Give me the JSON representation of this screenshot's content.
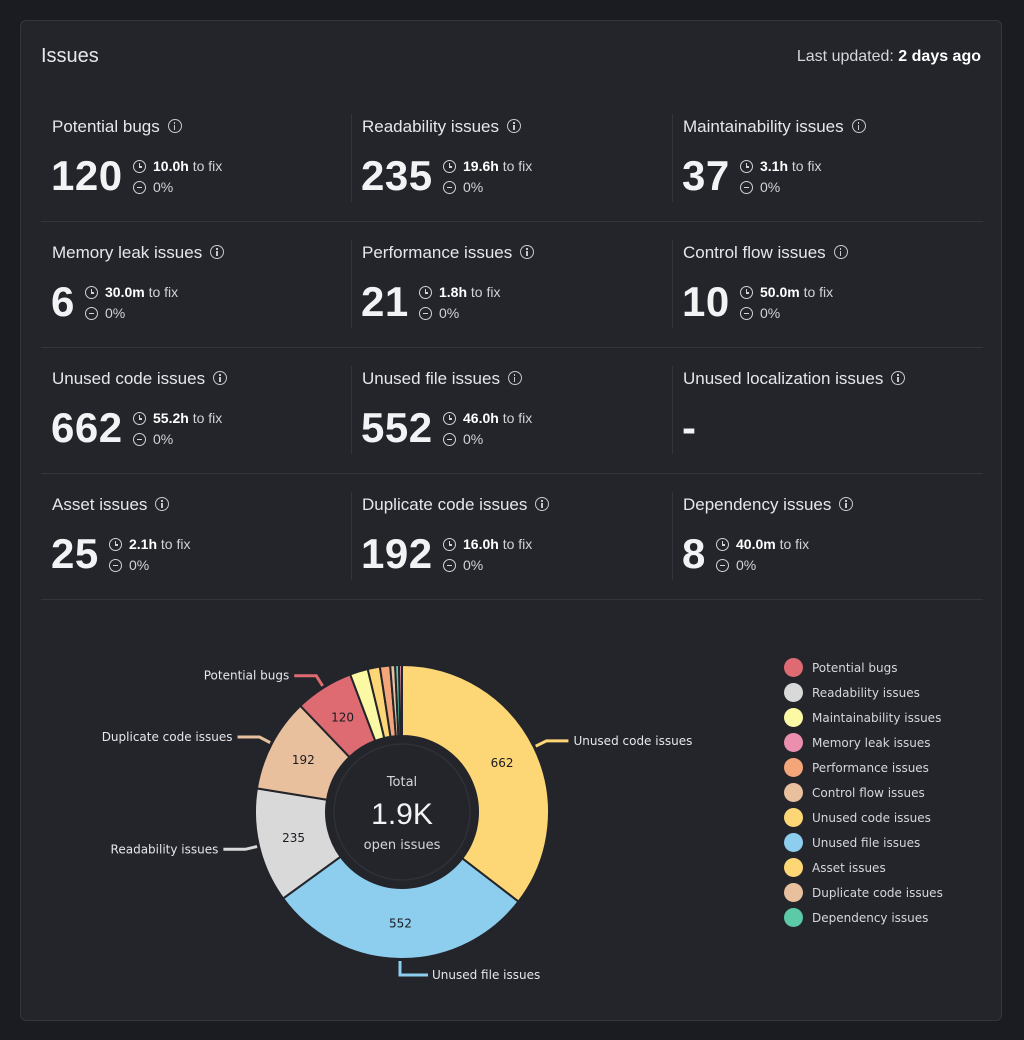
{
  "header": {
    "title": "Issues",
    "updated_prefix": "Last updated: ",
    "updated_value": "2 days ago"
  },
  "metrics": [
    {
      "label": "Potential bugs",
      "value": "120",
      "fix_time": "10.0h",
      "fix_suffix": " to fix",
      "change": "0%"
    },
    {
      "label": "Readability issues",
      "value": "235",
      "fix_time": "19.6h",
      "fix_suffix": " to fix",
      "change": "0%"
    },
    {
      "label": "Maintainability issues",
      "value": "37",
      "fix_time": "3.1h",
      "fix_suffix": " to fix",
      "change": "0%"
    },
    {
      "label": "Memory leak issues",
      "value": "6",
      "fix_time": "30.0m",
      "fix_suffix": " to fix",
      "change": "0%"
    },
    {
      "label": "Performance issues",
      "value": "21",
      "fix_time": "1.8h",
      "fix_suffix": " to fix",
      "change": "0%"
    },
    {
      "label": "Control flow issues",
      "value": "10",
      "fix_time": "50.0m",
      "fix_suffix": " to fix",
      "change": "0%"
    },
    {
      "label": "Unused code issues",
      "value": "662",
      "fix_time": "55.2h",
      "fix_suffix": " to fix",
      "change": "0%"
    },
    {
      "label": "Unused file issues",
      "value": "552",
      "fix_time": "46.0h",
      "fix_suffix": " to fix",
      "change": "0%"
    },
    {
      "label": "Unused localization issues",
      "value": "-",
      "fix_time": null,
      "fix_suffix": null,
      "change": null
    },
    {
      "label": "Asset issues",
      "value": "25",
      "fix_time": "2.1h",
      "fix_suffix": " to fix",
      "change": "0%"
    },
    {
      "label": "Duplicate code issues",
      "value": "192",
      "fix_time": "16.0h",
      "fix_suffix": " to fix",
      "change": "0%"
    },
    {
      "label": "Dependency issues",
      "value": "8",
      "fix_time": "40.0m",
      "fix_suffix": " to fix",
      "change": "0%"
    }
  ],
  "chart_data": {
    "type": "pie",
    "center_caption_top": "Total",
    "center_value": "1.9K",
    "center_caption_bottom": "open issues",
    "slices": [
      {
        "name": "Unused code issues",
        "value": 662,
        "color": "#fdd675",
        "label": "662",
        "callout": true
      },
      {
        "name": "Unused file issues",
        "value": 552,
        "color": "#8dcdee",
        "label": "552",
        "callout": true
      },
      {
        "name": "Readability issues",
        "value": 235,
        "color": "#d9d9d9",
        "label": "235",
        "callout": true
      },
      {
        "name": "Duplicate code issues",
        "value": 192,
        "color": "#e8c09e",
        "label": "192",
        "callout": true
      },
      {
        "name": "Potential bugs",
        "value": 120,
        "color": "#dd6b71",
        "label": "120",
        "callout": true
      },
      {
        "name": "Maintainability issues",
        "value": 37,
        "color": "#fcf9a4",
        "label": "",
        "callout": false
      },
      {
        "name": "Asset issues",
        "value": 25,
        "color": "#fdd675",
        "label": "",
        "callout": false
      },
      {
        "name": "Performance issues",
        "value": 21,
        "color": "#f5a57a",
        "label": "",
        "callout": false
      },
      {
        "name": "Control flow issues",
        "value": 10,
        "color": "#e8c09e",
        "label": "",
        "callout": false
      },
      {
        "name": "Dependency issues",
        "value": 8,
        "color": "#5cc9a7",
        "label": "",
        "callout": false
      },
      {
        "name": "Memory leak issues",
        "value": 6,
        "color": "#ec8fae",
        "label": "",
        "callout": false
      }
    ],
    "legend": [
      {
        "name": "Potential bugs",
        "color": "#dd6b71"
      },
      {
        "name": "Readability issues",
        "color": "#d9d9d9"
      },
      {
        "name": "Maintainability issues",
        "color": "#fcf9a4"
      },
      {
        "name": "Memory leak issues",
        "color": "#ec8fae"
      },
      {
        "name": "Performance issues",
        "color": "#f5a57a"
      },
      {
        "name": "Control flow issues",
        "color": "#e8c09e"
      },
      {
        "name": "Unused code issues",
        "color": "#fdd675"
      },
      {
        "name": "Unused file issues",
        "color": "#8dcdee"
      },
      {
        "name": "Asset issues",
        "color": "#fdd675"
      },
      {
        "name": "Duplicate code issues",
        "color": "#e8c09e"
      },
      {
        "name": "Dependency issues",
        "color": "#5cc9a7"
      }
    ],
    "legend_position": "right"
  }
}
